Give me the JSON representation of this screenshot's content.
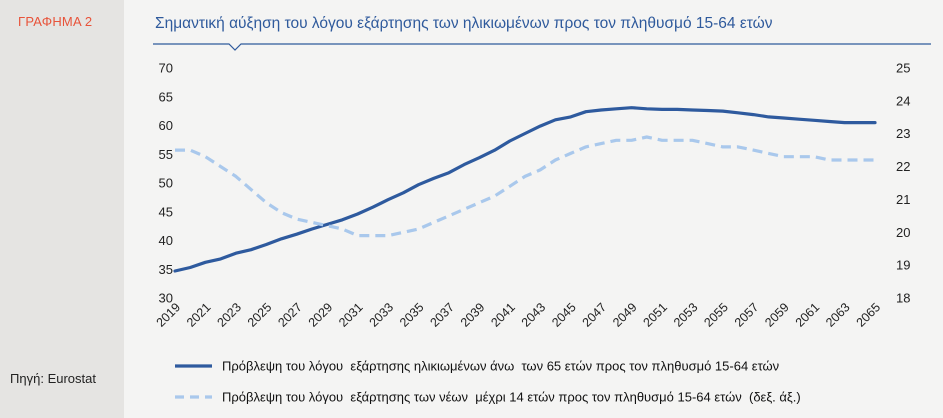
{
  "figure_label": "ΓΡΑΦΗΜΑ 2",
  "source": "Πηγή: Eurostat",
  "colors": {
    "accent": "#e8533a",
    "title": "#2f5a9c",
    "series_old": "#2e5a9e",
    "series_young": "#a9c8ec"
  },
  "chart_data": {
    "type": "line",
    "title": "Σημαντική αύξηση του λόγου εξάρτησης των ηλικιωμένων προς τον πληθυσμό 15-64 ετών",
    "xlabel": "",
    "ylabel": "",
    "x": [
      2019,
      2020,
      2021,
      2022,
      2023,
      2024,
      2025,
      2026,
      2027,
      2028,
      2029,
      2030,
      2031,
      2032,
      2033,
      2034,
      2035,
      2036,
      2037,
      2038,
      2039,
      2040,
      2041,
      2042,
      2043,
      2044,
      2045,
      2046,
      2047,
      2048,
      2049,
      2050,
      2051,
      2052,
      2053,
      2054,
      2055,
      2056,
      2057,
      2058,
      2059,
      2060,
      2061,
      2062,
      2063,
      2064,
      2065
    ],
    "x_tick_labels": [
      "2019",
      "2021",
      "2023",
      "2025",
      "2027",
      "2029",
      "2031",
      "2033",
      "2035",
      "2037",
      "2039",
      "2041",
      "2043",
      "2045",
      "2047",
      "2049",
      "2051",
      "2053",
      "2055",
      "2057",
      "2059",
      "2061",
      "2063",
      "2065"
    ],
    "ylim": [
      30,
      70
    ],
    "y_ticks": [
      30,
      35,
      40,
      45,
      50,
      55,
      60,
      65,
      70
    ],
    "y2lim": [
      18,
      25
    ],
    "y2_ticks": [
      18,
      19,
      20,
      21,
      22,
      23,
      24,
      25
    ],
    "grid": false,
    "legend_position": "bottom",
    "series": [
      {
        "name": "Πρόβλεψη του λόγου  εξάρτησης ηλικιωμένων άνω  των 65 ετών προς τον πληθυσμό 15-64 ετών",
        "axis": "left",
        "style": "solid",
        "values": [
          34.7,
          35.3,
          36.2,
          36.8,
          37.8,
          38.4,
          39.3,
          40.3,
          41.1,
          42.0,
          42.8,
          43.6,
          44.6,
          45.8,
          47.1,
          48.3,
          49.7,
          50.8,
          51.8,
          53.2,
          54.4,
          55.7,
          57.3,
          58.6,
          59.9,
          61.0,
          61.5,
          62.4,
          62.7,
          62.9,
          63.1,
          62.9,
          62.8,
          62.8,
          62.7,
          62.6,
          62.5,
          62.2,
          61.9,
          61.5,
          61.3,
          61.1,
          60.9,
          60.7,
          60.5,
          60.5,
          60.5
        ]
      },
      {
        "name": "Πρόβλεψη του λόγου  εξάρτησης των νέων  μέχρι 14 ετών προς τον πληθυσμό 15-64 ετών  (δεξ. άξ.)",
        "axis": "right",
        "style": "dashed",
        "values": [
          22.5,
          22.5,
          22.3,
          22.0,
          21.7,
          21.3,
          20.9,
          20.6,
          20.4,
          20.3,
          20.2,
          20.1,
          19.9,
          19.9,
          19.9,
          20.0,
          20.1,
          20.3,
          20.5,
          20.7,
          20.9,
          21.1,
          21.4,
          21.7,
          21.9,
          22.2,
          22.4,
          22.6,
          22.7,
          22.8,
          22.8,
          22.9,
          22.8,
          22.8,
          22.8,
          22.7,
          22.6,
          22.6,
          22.5,
          22.4,
          22.3,
          22.3,
          22.3,
          22.2,
          22.2,
          22.2,
          22.2
        ]
      }
    ]
  }
}
